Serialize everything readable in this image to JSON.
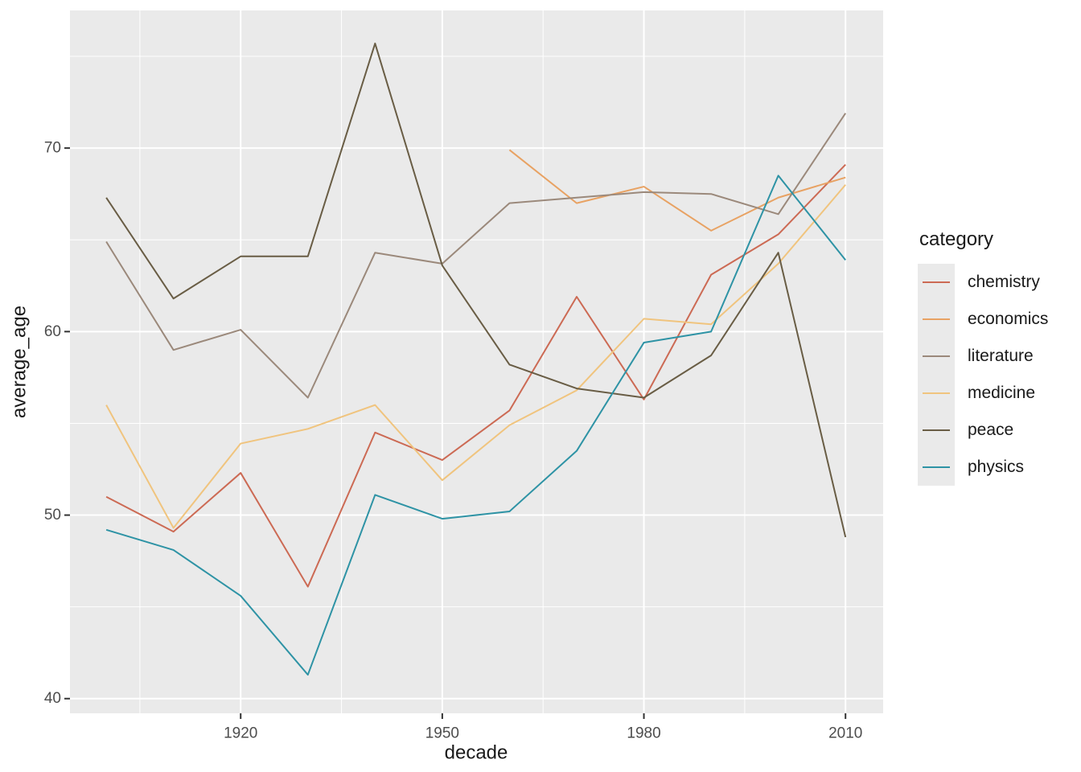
{
  "colors": {
    "panel_background": "#EAEAEA",
    "grid": "#FFFFFF",
    "tick_label": "#4D4D4D",
    "axis_title": "#1a1a1a",
    "tick_mark": "#333333"
  },
  "legend": {
    "title": "category",
    "items": [
      {
        "label": "chemistry",
        "color": "#CC6A54"
      },
      {
        "label": "economics",
        "color": "#E8A263"
      },
      {
        "label": "literature",
        "color": "#9B897B"
      },
      {
        "label": "medicine",
        "color": "#F0C47E"
      },
      {
        "label": "peace",
        "color": "#695D45"
      },
      {
        "label": "physics",
        "color": "#2E93A5"
      }
    ]
  },
  "chart_data": {
    "type": "line",
    "title": "",
    "xlabel": "decade",
    "ylabel": "average_age",
    "x": [
      1900,
      1910,
      1920,
      1930,
      1940,
      1950,
      1960,
      1970,
      1980,
      1990,
      2000,
      2010
    ],
    "series": [
      {
        "name": "chemistry",
        "color": "#CC6A54",
        "values": [
          51.0,
          49.1,
          52.3,
          46.1,
          54.5,
          53.0,
          55.7,
          61.9,
          56.3,
          63.1,
          65.3,
          69.1
        ]
      },
      {
        "name": "economics",
        "color": "#E8A263",
        "values": [
          null,
          null,
          null,
          null,
          null,
          null,
          69.9,
          67.0,
          67.9,
          65.5,
          67.3,
          68.4
        ]
      },
      {
        "name": "literature",
        "color": "#9B897B",
        "values": [
          64.9,
          59.0,
          60.1,
          56.4,
          64.3,
          63.7,
          67.0,
          67.3,
          67.6,
          67.5,
          66.4,
          71.9
        ]
      },
      {
        "name": "medicine",
        "color": "#F0C47E",
        "values": [
          56.0,
          49.3,
          53.9,
          54.7,
          56.0,
          51.9,
          54.9,
          56.8,
          60.7,
          60.4,
          63.7,
          68.0
        ]
      },
      {
        "name": "peace",
        "color": "#695D45",
        "values": [
          67.3,
          61.8,
          64.1,
          64.1,
          75.7,
          63.6,
          58.2,
          56.9,
          56.4,
          58.7,
          64.3,
          48.8
        ]
      },
      {
        "name": "physics",
        "color": "#2E93A5",
        "values": [
          49.2,
          48.1,
          45.6,
          41.3,
          51.1,
          49.8,
          50.2,
          53.5,
          59.4,
          60.0,
          68.5,
          63.9
        ]
      }
    ],
    "x_ticks": [
      1920,
      1950,
      1980,
      2010
    ],
    "x_tick_labels": [
      "1920",
      "1950",
      "1980",
      "2010"
    ],
    "x_minor_ticks": [
      1905,
      1935,
      1965,
      1995
    ],
    "y_ticks": [
      40,
      50,
      60,
      70
    ],
    "y_tick_labels": [
      "40",
      "50",
      "60",
      "70"
    ],
    "y_minor_ticks": [
      45,
      55,
      65,
      75
    ],
    "xlim": [
      1894.6,
      2015.6
    ],
    "ylim": [
      39.2,
      77.5
    ],
    "grid": true,
    "legend_position": "right",
    "legend_title": "category"
  }
}
